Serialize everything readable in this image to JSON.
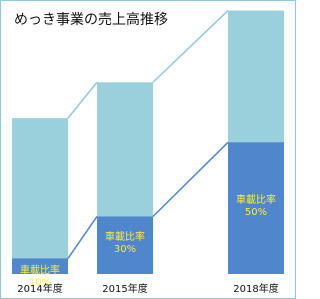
{
  "chart_data": {
    "type": "bar",
    "title": "めっき事業の売上高推移",
    "categories": [
      "2014年度",
      "2015年度",
      "2018年度"
    ],
    "values": [
      100,
      123,
      169
    ],
    "color": "#9acfdc",
    "ylim": [
      0,
      170
    ],
    "ratio": {
      "label": "車載比率",
      "values": [
        10,
        30,
        50
      ],
      "value_labels": [
        "10%",
        "30%",
        "50%"
      ],
      "color": "#4f86cc"
    }
  }
}
